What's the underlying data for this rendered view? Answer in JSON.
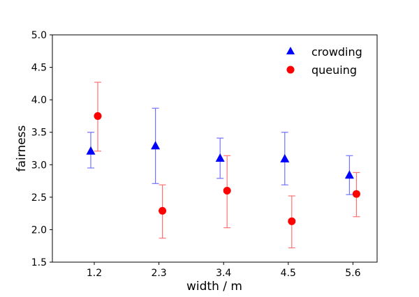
{
  "chart_data": {
    "type": "scatter",
    "xlabel": "width / m",
    "ylabel": "fairness",
    "categories": [
      "1.2",
      "2.3",
      "3.4",
      "4.5",
      "5.6"
    ],
    "ylim": [
      1.5,
      5.0
    ],
    "yticks": [
      "1.5",
      "2.0",
      "2.5",
      "3.0",
      "3.5",
      "4.0",
      "4.5",
      "5.0"
    ],
    "grid": false,
    "legend_position": "top-right",
    "series": [
      {
        "name": "crowding",
        "color": "#0000ff",
        "marker": "triangle",
        "values": [
          3.21,
          3.29,
          3.1,
          3.09,
          2.84
        ],
        "err_high": [
          3.5,
          3.87,
          3.41,
          3.5,
          3.14
        ],
        "err_low": [
          2.95,
          2.71,
          2.79,
          2.69,
          2.54
        ]
      },
      {
        "name": "queuing",
        "color": "#ff0000",
        "marker": "circle",
        "values": [
          3.75,
          2.29,
          2.6,
          2.13,
          2.55
        ],
        "err_high": [
          4.27,
          2.69,
          3.14,
          2.52,
          2.88
        ],
        "err_low": [
          3.21,
          1.87,
          2.03,
          1.72,
          2.2
        ]
      }
    ]
  }
}
